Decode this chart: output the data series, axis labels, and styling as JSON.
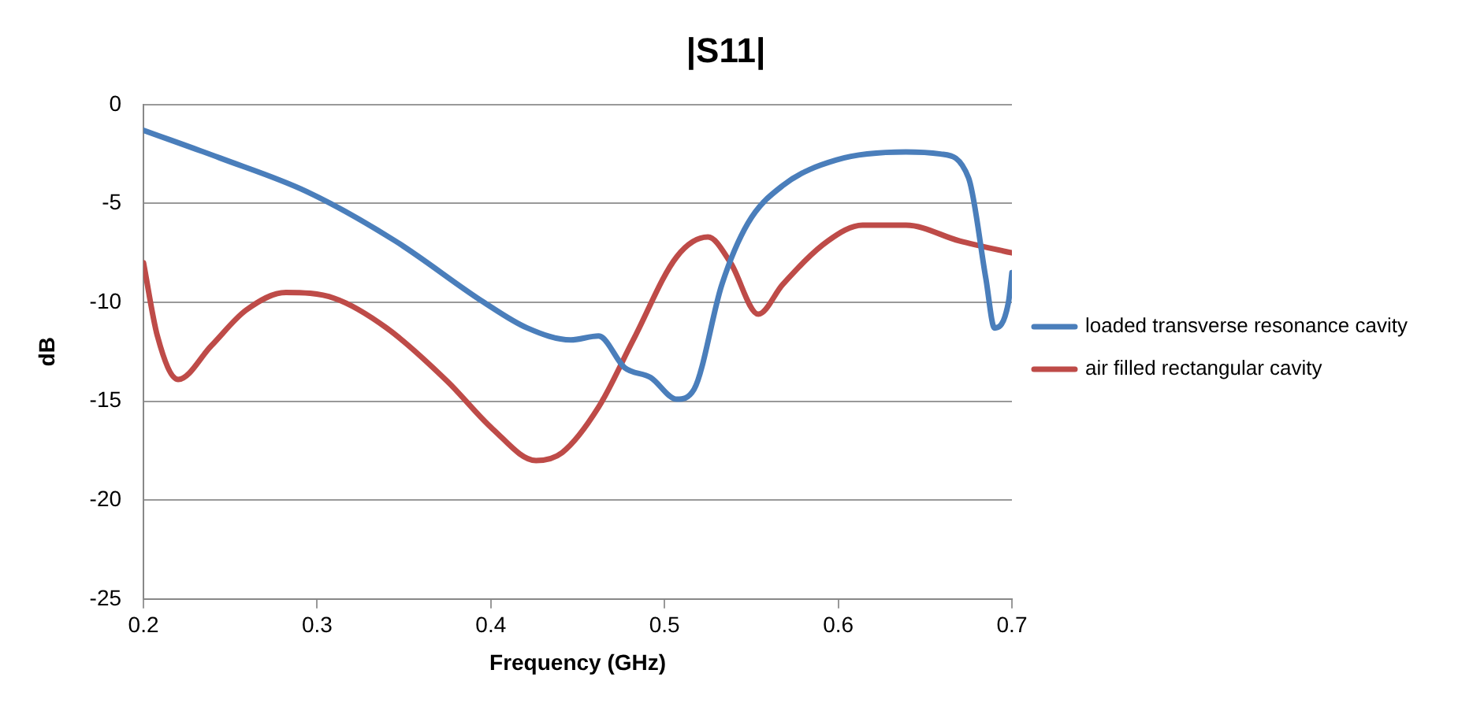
{
  "chart_data": {
    "type": "line",
    "title": "|S11|",
    "xlabel": "Frequency (GHz)",
    "ylabel": "dB",
    "xlim": [
      0.2,
      0.7
    ],
    "xticks": [
      0.2,
      0.3,
      0.4,
      0.5,
      0.6,
      0.7
    ],
    "ylim": [
      -25,
      0
    ],
    "yticks": [
      -25,
      -20,
      -15,
      -10,
      -5,
      0
    ],
    "grid": "y",
    "legend": "right",
    "marker": "none",
    "line_style": "solid",
    "series": [
      {
        "name": "loaded transverse resonance cavity",
        "color": "#4a7ebb",
        "x": [
          0.2,
          0.244,
          0.294,
          0.345,
          0.396,
          0.421,
          0.446,
          0.462,
          0.477,
          0.492,
          0.507,
          0.517,
          0.533,
          0.548,
          0.568,
          0.599,
          0.639,
          0.659,
          0.675,
          0.685,
          0.69,
          0.698,
          0.7
        ],
        "values": [
          -1.3,
          -2.7,
          -4.4,
          -6.9,
          -10.0,
          -11.3,
          -11.9,
          -11.7,
          -13.3,
          -13.8,
          -14.9,
          -14.4,
          -9.1,
          -6.0,
          -4.1,
          -2.8,
          -2.4,
          -2.5,
          -3.7,
          -8.8,
          -11.3,
          -10.0,
          -8.5
        ]
      },
      {
        "name": "air filled rectangular cavity",
        "color": "#be4b48",
        "x": [
          0.2,
          0.208,
          0.22,
          0.239,
          0.259,
          0.282,
          0.31,
          0.34,
          0.375,
          0.401,
          0.426,
          0.441,
          0.462,
          0.482,
          0.507,
          0.525,
          0.538,
          0.554,
          0.568,
          0.594,
          0.614,
          0.639,
          0.67,
          0.7
        ],
        "values": [
          -8.0,
          -11.7,
          -13.9,
          -12.2,
          -10.4,
          -9.5,
          -9.8,
          -11.3,
          -14.0,
          -16.4,
          -18.0,
          -17.6,
          -15.3,
          -11.9,
          -7.7,
          -6.7,
          -8.0,
          -10.6,
          -9.1,
          -6.9,
          -6.1,
          -6.1,
          -6.9,
          -7.5
        ]
      }
    ]
  }
}
